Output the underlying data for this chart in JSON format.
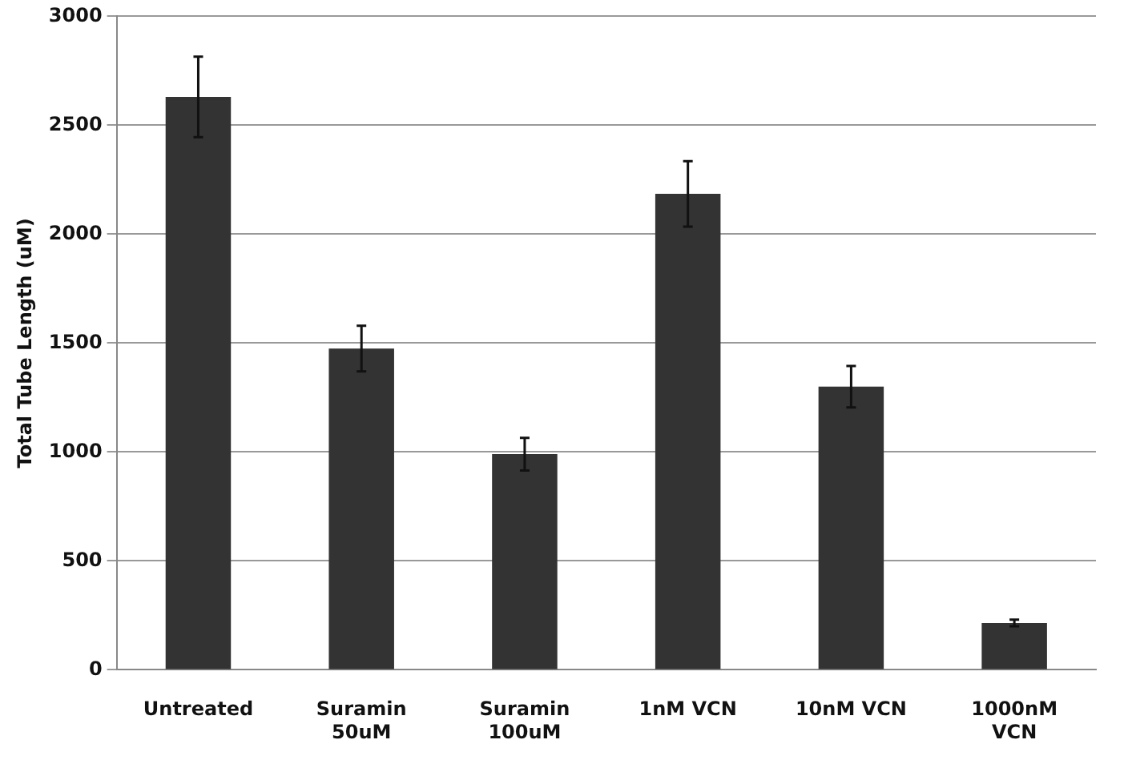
{
  "chart_data": {
    "type": "bar",
    "ylabel": "Total Tube Length (uM)",
    "categories": [
      "Untreated",
      "Suramin 50uM",
      "Suramin 100uM",
      "1nM VCN",
      "10nM VCN",
      "1000nM VCN"
    ],
    "values": [
      2630,
      1475,
      990,
      2185,
      1300,
      215
    ],
    "errors": [
      185,
      105,
      75,
      150,
      95,
      15
    ],
    "color": "#333333",
    "ylim": [
      0,
      3000
    ],
    "yticks": [
      0,
      500,
      1000,
      1500,
      2000,
      2500,
      3000
    ],
    "grid": "y",
    "legend": false
  }
}
